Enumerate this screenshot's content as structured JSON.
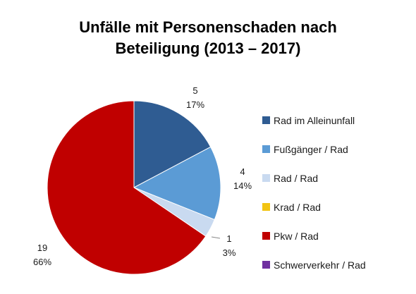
{
  "chart_data": {
    "type": "pie",
    "title": "Unfälle mit Personenschaden nach",
    "subtitle": "Beteiligung (2013 – 2017)",
    "categories": [
      "Rad im Alleinunfall",
      "Fußgänger / Rad",
      "Rad / Rad",
      "Krad / Rad",
      "Pkw / Rad",
      "Schwerverkehr / Rad"
    ],
    "values": [
      5,
      4,
      1,
      0,
      19,
      0
    ],
    "percent_labels": [
      "17%",
      "14%",
      "3%",
      "",
      "66%",
      ""
    ],
    "value_labels": [
      "5",
      "4",
      "1",
      "",
      "19",
      ""
    ],
    "colors": [
      "#2f5c92",
      "#5b9bd5",
      "#c9daf0",
      "#f2c413",
      "#c00000",
      "#7030a0"
    ],
    "legend_position": "right"
  }
}
